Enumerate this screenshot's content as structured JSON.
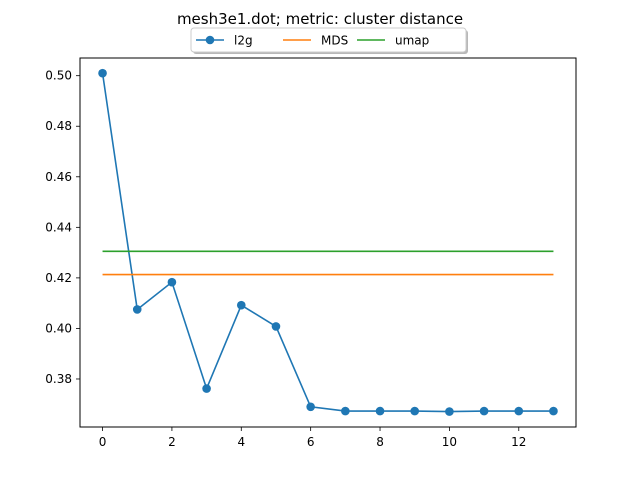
{
  "chart_data": {
    "type": "line",
    "title": "mesh3e1.dot; metric: cluster distance",
    "xlabel": "",
    "ylabel": "",
    "xlim": [
      -0.65,
      13.65
    ],
    "ylim": [
      0.361,
      0.507
    ],
    "xticks": [
      0,
      2,
      4,
      6,
      8,
      10,
      12
    ],
    "yticks": [
      0.38,
      0.4,
      0.42,
      0.44,
      0.46,
      0.48,
      0.5
    ],
    "ytick_labels": [
      "0.38",
      "0.40",
      "0.42",
      "0.44",
      "0.46",
      "0.48",
      "0.50"
    ],
    "grid": false,
    "legend_placement": "top-center",
    "series": [
      {
        "name": "l2g",
        "color": "#1f77b4",
        "marker": "circle",
        "x": [
          0,
          1,
          2,
          3,
          4,
          5,
          6,
          7,
          8,
          9,
          10,
          11,
          12,
          13
        ],
        "values": [
          0.501,
          0.4075,
          0.4183,
          0.3762,
          0.4092,
          0.4008,
          0.369,
          0.3673,
          0.3673,
          0.3673,
          0.3671,
          0.3673,
          0.3673,
          0.3673
        ]
      },
      {
        "name": "MDS",
        "color": "#ff7f0e",
        "marker": "none",
        "x": [
          0,
          13
        ],
        "values": [
          0.4213,
          0.4213
        ]
      },
      {
        "name": "umap",
        "color": "#2ca02c",
        "marker": "none",
        "x": [
          0,
          13
        ],
        "values": [
          0.4305,
          0.4305
        ]
      }
    ]
  }
}
